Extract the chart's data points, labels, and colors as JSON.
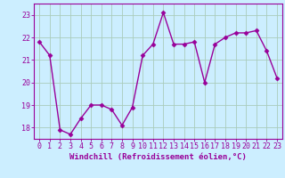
{
  "x": [
    0,
    1,
    2,
    3,
    4,
    5,
    6,
    7,
    8,
    9,
    10,
    11,
    12,
    13,
    14,
    15,
    16,
    17,
    18,
    19,
    20,
    21,
    22,
    23
  ],
  "y": [
    21.8,
    21.2,
    17.9,
    17.7,
    18.4,
    19.0,
    19.0,
    18.8,
    18.1,
    18.9,
    21.2,
    21.7,
    23.1,
    21.7,
    21.7,
    21.8,
    20.0,
    21.7,
    22.0,
    22.2,
    22.2,
    22.3,
    21.4,
    20.2
  ],
  "line_color": "#990099",
  "marker": "D",
  "marker_size": 2.5,
  "xlabel": "Windchill (Refroidissement éolien,°C)",
  "xlabel_fontsize": 6.5,
  "xticks": [
    0,
    1,
    2,
    3,
    4,
    5,
    6,
    7,
    8,
    9,
    10,
    11,
    12,
    13,
    14,
    15,
    16,
    17,
    18,
    19,
    20,
    21,
    22,
    23
  ],
  "yticks": [
    18,
    19,
    20,
    21,
    22,
    23
  ],
  "ylim": [
    17.5,
    23.5
  ],
  "xlim": [
    -0.5,
    23.5
  ],
  "bg_color": "#cceeff",
  "grid_color": "#aaccbb",
  "tick_fontsize": 6,
  "linewidth": 1.0
}
